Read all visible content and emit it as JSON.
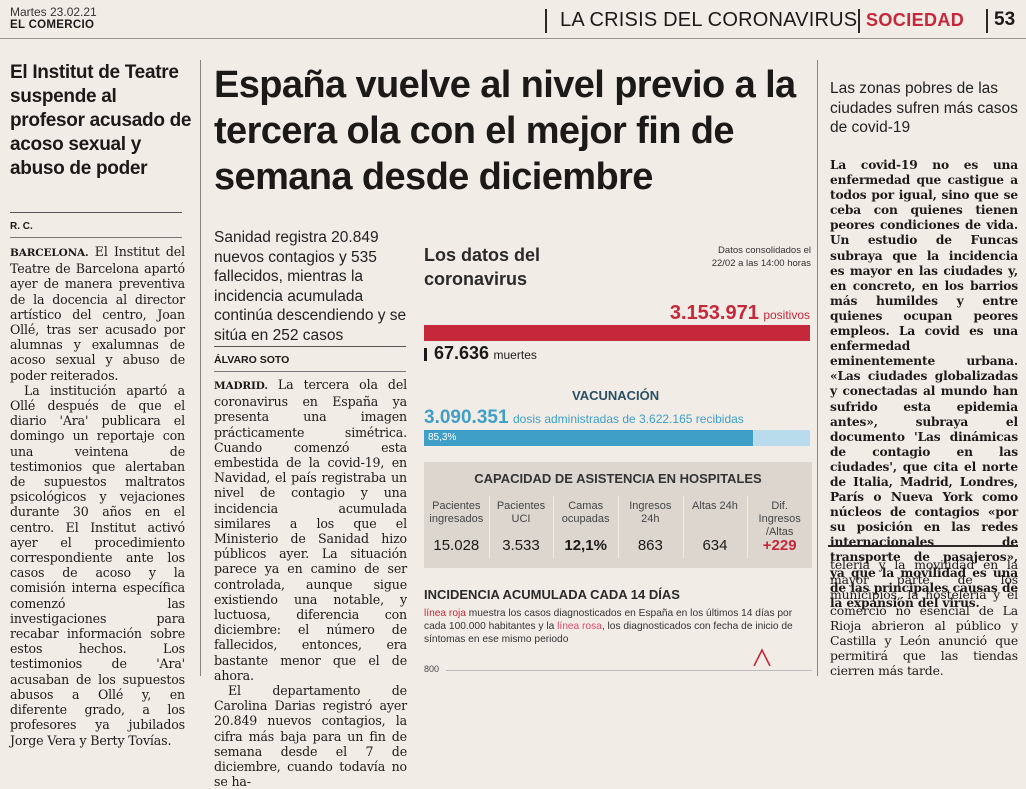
{
  "masthead": {
    "date": "Martes 23.02.21",
    "paper": "EL COMERCIO",
    "section_title": "LA CRISIS DEL CORONAVIRUS",
    "section": "SOCIEDAD",
    "page": "53"
  },
  "left": {
    "headline": "El Institut de Teatre suspende al profesor acusado de acoso sexual y abuso de poder",
    "author": "R. C.",
    "p1_lead": "BARCELONA.",
    "p1": " El Institut del Teatre de Barcelona apartó ayer de manera preventiva de la docencia al director artístico del centro, Joan Ollé, tras ser acusado por alumnas y exalumnas de acoso sexual y abuso de poder reiterados.",
    "p2": "La institución apartó a Ollé después de que el diario 'Ara' publicara el domingo un reportaje con una veintena de testimonios que alertaban de supuestos maltratos psicológicos y vejaciones durante 30 años en el centro. El Institut activó ayer el procedimiento correspondiente ante los casos de acoso y la comisión interna específica comenzó las investigaciones para recabar información sobre estos hechos. Los testimonios de 'Ara' acusaban de los supuestos abusos a Ollé y, en diferente grado, a los profesores ya jubilados Jorge Vera y Berty Tovías."
  },
  "main": {
    "headline": "España vuelve al nivel previo a la tercera ola con el mejor fin de semana desde diciembre",
    "subhead": "Sanidad registra 20.849 nuevos contagios y 535 fallecidos, mientras la incidencia acumulada continúa descendiendo y se sitúa en 252 casos",
    "author": "ÁLVARO SOTO",
    "p1_lead": "MADRID.",
    "p1": " La tercera ola del coronavirus en España ya presenta una imagen prácticamente simétrica. Cuando comenzó esta embestida de la covid-19, en Navidad, el país registraba un nivel de contagio y una incidencia acumulada similares a los que el Ministerio de Sanidad hizo públicos ayer. La situación parece ya en camino de ser controlada, aunque sigue existiendo una notable, y luctuosa, diferencia con diciembre: el número de fallecidos, entonces, era bastante menor que el de ahora.",
    "p2": "El departamento de Carolina Darias registró ayer 20.849 nuevos contagios, la cifra más baja para un fin de semana desde el 7 de diciembre, cuando todavía no se ha-"
  },
  "infographic": {
    "title": "Los datos del coronavirus",
    "consolidated": "Datos consolidados el 22/02 a las 14:00 horas",
    "positives_value": "3.153.971",
    "positives_label": "positivos",
    "deaths_value": "67.636",
    "deaths_label": "muertes",
    "vaccination_title": "VACUNACIÓN",
    "doses_value": "3.090.351",
    "doses_label": "dosis administradas de 3.622.165 recibidas",
    "doses_pct": "85,3%",
    "doses_fraction": 0.853,
    "hospital_title": "CAPACIDAD DE ASISTENCIA EN HOSPITALES",
    "hospital_headers": [
      "Pacientes ingresados",
      "Pacientes UCI",
      "Camas ocupadas",
      "Ingresos 24h",
      "Altas 24h",
      "Dif. Ingresos /Altas"
    ],
    "hospital_values": [
      "15.028",
      "3.533",
      "12,1%",
      "863",
      "634",
      "+229"
    ],
    "incidence_title": "INCIDENCIA ACUMULADA CADA 14 DÍAS",
    "incidence_red_term": "línea roja",
    "incidence_text_1": " muestra los casos diagnosticados en España en los últimos 14 días por cada 100.000 habitantes y la ",
    "incidence_pink_term": "línea rosa",
    "incidence_text_2": ", los diagnosticados con fecha de inicio de síntomas en ese mismo periodo",
    "axis_tick": "800",
    "colors": {
      "red": "#c4283a",
      "blue": "#3f9fc7",
      "pink": "#d94a72",
      "panel": "#dcd6cf"
    }
  },
  "right": {
    "headline": "Las zonas pobres de las ciudades sufren más casos de covid-19",
    "p1": "La covid-19 no es una enfermedad que castigue a todos por igual, sino que se ceba con quienes tienen peores condiciones de vida. Un estudio de Funcas subraya que la incidencia es mayor en las ciudades y, en concreto, en los barrios más humildes y entre quienes ocupan peores empleos. La covid es una enfermedad eminentemente urbana. «Las ciudades globalizadas y conectadas al mundo han sufrido esta epidemia antes», subraya el documento 'Las dinámicas de contagio en las ciudades', que cita el norte de Italia, Madrid, Londres, París o Nueva York como núcleos de contagios «por su posición en las redes internacionales de transporte de pasajeros», ya que la movilidad es una de las principales causas de la expansión del virus.",
    "p2": "telería y la movilidad en la mayor parte de los municipios, la hostelería y el comercio no esencial de La Rioja abrieron al público y Castilla y León anunció que permitirá que las tiendas cierren más tarde."
  }
}
